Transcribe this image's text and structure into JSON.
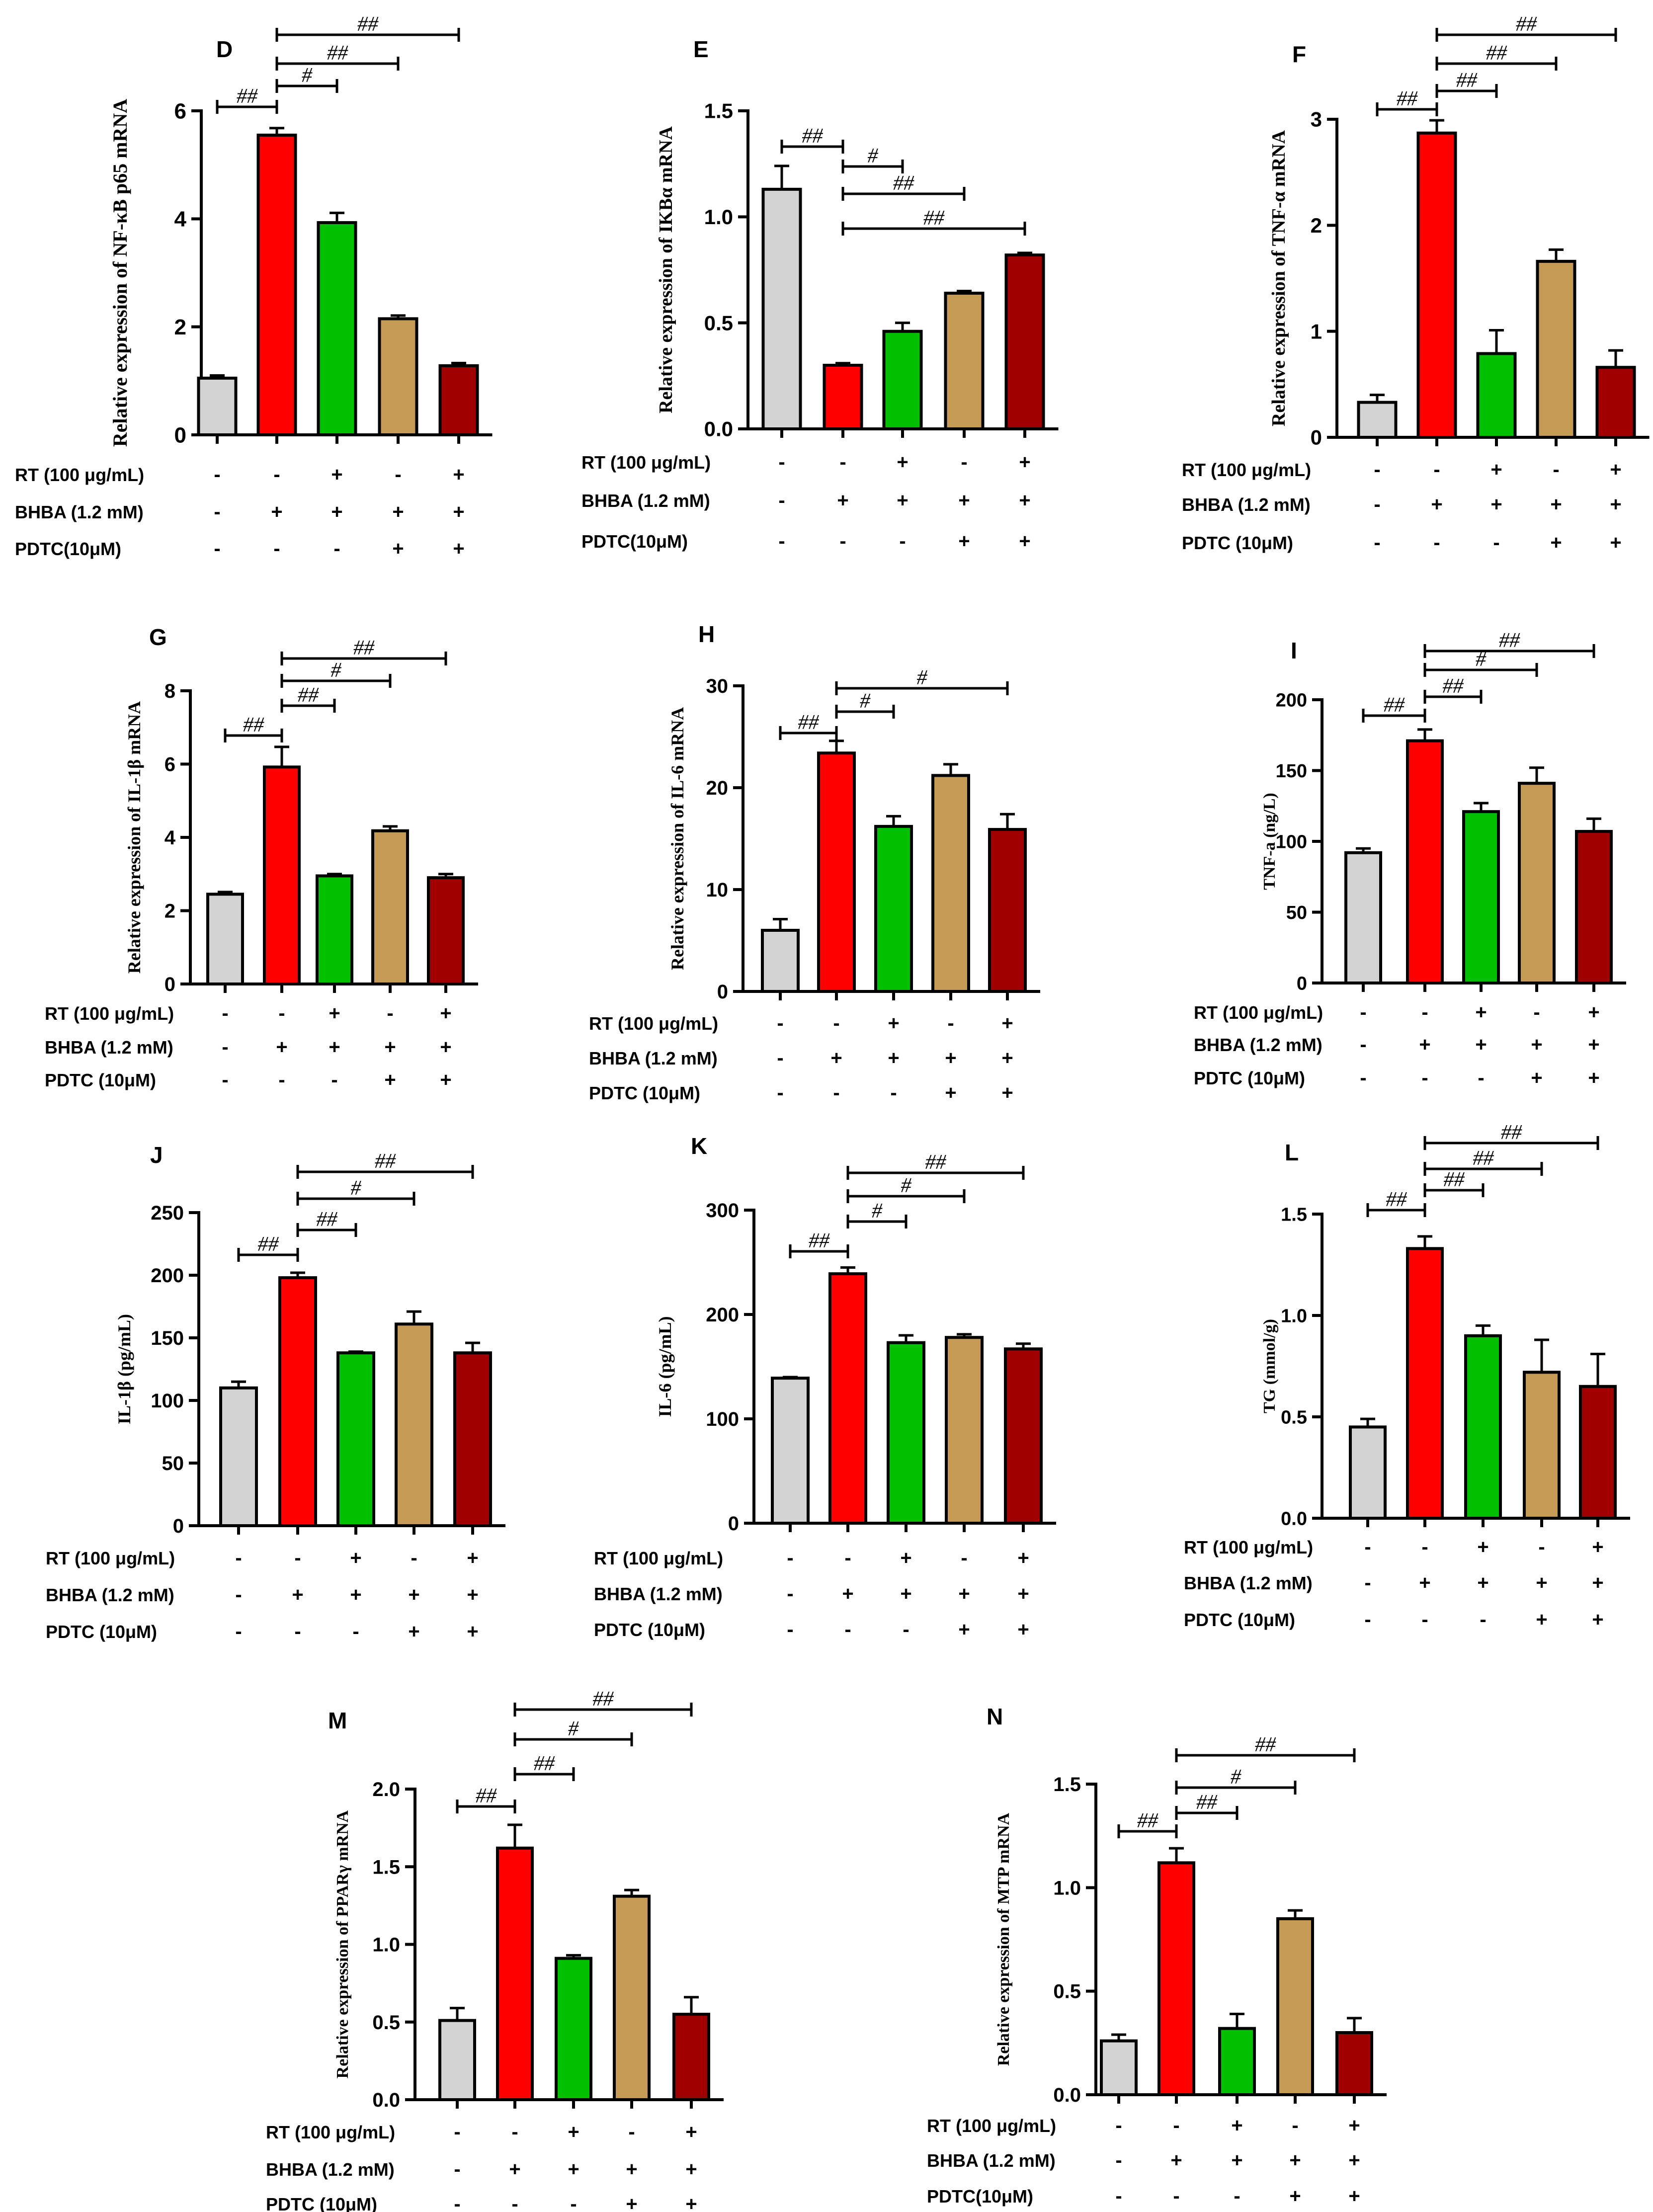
{
  "colors": {
    "ctrl": "#d3d3d3",
    "bhba": "#ff0000",
    "rt": "#00c000",
    "pdtc": "#c49a55",
    "rtpdtc": "#a00000",
    "axis": "#000000"
  },
  "conditions": {
    "rt": [
      "-",
      "-",
      "+",
      "-",
      "+"
    ],
    "bhba": [
      "-",
      "+",
      "+",
      "+",
      "+"
    ],
    "pdtc": [
      "-",
      "-",
      "-",
      "+",
      "+"
    ]
  },
  "chart_data": [
    {
      "type": "bar",
      "panel": "D",
      "ylabel": "Relative expression of NF-κB p65 mRNA",
      "ylim": [
        0,
        6
      ],
      "yticks": [
        0,
        2,
        4,
        6
      ],
      "values": [
        1.05,
        5.55,
        3.93,
        2.15,
        1.28
      ],
      "errors": [
        0.05,
        0.13,
        0.18,
        0.06,
        0.05
      ],
      "cond_labels": [
        "RT (100 μg/mL)",
        "BHBA (1.2 mM)",
        "PDTC(10μM)"
      ],
      "sig": [
        {
          "from": 0,
          "to": 1,
          "text": "##"
        },
        {
          "from": 1,
          "to": 2,
          "text": "#"
        },
        {
          "from": 1,
          "to": 3,
          "text": "##"
        },
        {
          "from": 1,
          "to": 4,
          "text": "##"
        }
      ]
    },
    {
      "type": "bar",
      "panel": "E",
      "ylabel": "Relative expression of IKBα mRNA",
      "ylim": [
        0,
        1.5
      ],
      "yticks": [
        0.0,
        0.5,
        1.0,
        1.5
      ],
      "tick_decimals": 1,
      "values": [
        1.13,
        0.3,
        0.46,
        0.64,
        0.82
      ],
      "errors": [
        0.11,
        0.01,
        0.04,
        0.01,
        0.01
      ],
      "cond_labels": [
        "RT (100 μg/mL)",
        "BHBA (1.2 mM)",
        "PDTC(10μM)"
      ],
      "sig": [
        {
          "from": 0,
          "to": 1,
          "text": "##"
        },
        {
          "from": 1,
          "to": 2,
          "text": "#"
        },
        {
          "from": 1,
          "to": 3,
          "text": "##"
        },
        {
          "from": 1,
          "to": 4,
          "text": "##"
        }
      ]
    },
    {
      "type": "bar",
      "panel": "F",
      "ylabel": "Relative expression of TNF-α mRNA",
      "ylim": [
        0,
        3
      ],
      "yticks": [
        0,
        1,
        2,
        3
      ],
      "values": [
        0.33,
        2.87,
        0.79,
        1.66,
        0.66
      ],
      "errors": [
        0.07,
        0.12,
        0.22,
        0.11,
        0.16
      ],
      "cond_labels": [
        "RT (100 μg/mL)",
        "BHBA (1.2 mM)",
        "PDTC (10μM)"
      ],
      "sig": [
        {
          "from": 0,
          "to": 1,
          "text": "##"
        },
        {
          "from": 1,
          "to": 2,
          "text": "##"
        },
        {
          "from": 1,
          "to": 3,
          "text": "##"
        },
        {
          "from": 1,
          "to": 4,
          "text": "##"
        }
      ]
    },
    {
      "type": "bar",
      "panel": "G",
      "ylabel": "Relative expression of IL-1β mRNA",
      "ylim": [
        0,
        8
      ],
      "yticks": [
        0,
        2,
        4,
        6,
        8
      ],
      "values": [
        2.45,
        5.92,
        2.95,
        4.18,
        2.9
      ],
      "errors": [
        0.06,
        0.55,
        0.05,
        0.12,
        0.1
      ],
      "cond_labels": [
        "RT (100 μg/mL)",
        "BHBA (1.2 mM)",
        "PDTC (10μM)"
      ],
      "sig": [
        {
          "from": 0,
          "to": 1,
          "text": "##"
        },
        {
          "from": 1,
          "to": 2,
          "text": "##"
        },
        {
          "from": 1,
          "to": 3,
          "text": "#"
        },
        {
          "from": 1,
          "to": 4,
          "text": "##"
        }
      ]
    },
    {
      "type": "bar",
      "panel": "H",
      "ylabel": "Relative expression of IL-6 mRNA",
      "ylim": [
        0,
        30
      ],
      "yticks": [
        0,
        10,
        20,
        30
      ],
      "values": [
        6.0,
        23.4,
        16.2,
        21.2,
        15.9
      ],
      "errors": [
        1.1,
        1.2,
        1.0,
        1.1,
        1.5
      ],
      "cond_labels": [
        "RT (100 μg/mL)",
        "BHBA (1.2 mM)",
        "PDTC (10μM)"
      ],
      "sig": [
        {
          "from": 0,
          "to": 1,
          "text": "##"
        },
        {
          "from": 1,
          "to": 2,
          "text": "#"
        },
        {
          "from": 1,
          "to": 4,
          "text": "#"
        }
      ]
    },
    {
      "type": "bar",
      "panel": "I",
      "ylabel": "TNF-a (ng/L)",
      "ylim": [
        0,
        200
      ],
      "yticks": [
        0,
        50,
        100,
        150,
        200
      ],
      "values": [
        92,
        171,
        121,
        141,
        107
      ],
      "errors": [
        3,
        8,
        6,
        11,
        9
      ],
      "cond_labels": [
        "RT (100 μg/mL)",
        "BHBA (1.2 mM)",
        "PDTC (10μM)"
      ],
      "sig": [
        {
          "from": 0,
          "to": 1,
          "text": "##"
        },
        {
          "from": 1,
          "to": 2,
          "text": "##"
        },
        {
          "from": 1,
          "to": 3,
          "text": "#"
        },
        {
          "from": 1,
          "to": 4,
          "text": "##"
        }
      ]
    },
    {
      "type": "bar",
      "panel": "J",
      "ylabel": "IL-1β (pg/mL)",
      "ylim": [
        0,
        250
      ],
      "yticks": [
        0,
        50,
        100,
        150,
        200,
        250
      ],
      "values": [
        110,
        198,
        138,
        161,
        138
      ],
      "errors": [
        5,
        4,
        1,
        10,
        8
      ],
      "cond_labels": [
        "RT (100 μg/mL)",
        "BHBA (1.2 mM)",
        "PDTC (10μM)"
      ],
      "sig": [
        {
          "from": 0,
          "to": 1,
          "text": "##"
        },
        {
          "from": 1,
          "to": 2,
          "text": "##"
        },
        {
          "from": 1,
          "to": 3,
          "text": "#"
        },
        {
          "from": 1,
          "to": 4,
          "text": "##"
        }
      ]
    },
    {
      "type": "bar",
      "panel": "K",
      "ylabel": "IL-6 (pg/mL)",
      "ylim": [
        0,
        300
      ],
      "yticks": [
        0,
        100,
        200,
        300
      ],
      "values": [
        139,
        239,
        173,
        178,
        167
      ],
      "errors": [
        1,
        6,
        7,
        3,
        5
      ],
      "cond_labels": [
        "RT (100 μg/mL)",
        "BHBA (1.2 mM)",
        "PDTC (10μM)"
      ],
      "sig": [
        {
          "from": 0,
          "to": 1,
          "text": "##"
        },
        {
          "from": 1,
          "to": 2,
          "text": "#"
        },
        {
          "from": 1,
          "to": 3,
          "text": "#"
        },
        {
          "from": 1,
          "to": 4,
          "text": "##"
        }
      ]
    },
    {
      "type": "bar",
      "panel": "L",
      "ylabel": "TG (mmol/g)",
      "ylim": [
        0,
        1.5
      ],
      "yticks": [
        0.0,
        0.5,
        1.0,
        1.5
      ],
      "tick_decimals": 1,
      "values": [
        0.45,
        1.33,
        0.9,
        0.72,
        0.65
      ],
      "errors": [
        0.04,
        0.06,
        0.05,
        0.16,
        0.16
      ],
      "cond_labels": [
        "RT (100 μg/mL)",
        "BHBA (1.2 mM)",
        "PDTC (10μM)"
      ],
      "sig": [
        {
          "from": 0,
          "to": 1,
          "text": "##"
        },
        {
          "from": 1,
          "to": 2,
          "text": "##"
        },
        {
          "from": 1,
          "to": 3,
          "text": "##"
        },
        {
          "from": 1,
          "to": 4,
          "text": "##"
        }
      ]
    },
    {
      "type": "bar",
      "panel": "M",
      "ylabel": "Relative expression of PPARγ mRNA",
      "ylim": [
        0,
        2.0
      ],
      "yticks": [
        0.0,
        0.5,
        1.0,
        1.5,
        2.0
      ],
      "tick_decimals": 1,
      "values": [
        0.51,
        1.62,
        0.91,
        1.31,
        0.55
      ],
      "errors": [
        0.08,
        0.15,
        0.02,
        0.04,
        0.11
      ],
      "cond_labels": [
        "RT (100 μg/mL)",
        "BHBA (1.2 mM)",
        "PDTC (10μM)"
      ],
      "sig": [
        {
          "from": 0,
          "to": 1,
          "text": "##"
        },
        {
          "from": 1,
          "to": 2,
          "text": "##"
        },
        {
          "from": 1,
          "to": 3,
          "text": "#"
        },
        {
          "from": 1,
          "to": 4,
          "text": "##"
        }
      ]
    },
    {
      "type": "bar",
      "panel": "N",
      "ylabel": "Relative expression of MTP mRNA",
      "ylim": [
        0,
        1.5
      ],
      "yticks": [
        0.0,
        0.5,
        1.0,
        1.5
      ],
      "tick_decimals": 1,
      "values": [
        0.26,
        1.12,
        0.32,
        0.85,
        0.3
      ],
      "errors": [
        0.03,
        0.07,
        0.07,
        0.04,
        0.07
      ],
      "cond_labels": [
        "RT (100 μg/mL)",
        "BHBA (1.2 mM)",
        "PDTC(10μM)"
      ],
      "sig": [
        {
          "from": 0,
          "to": 1,
          "text": "##"
        },
        {
          "from": 1,
          "to": 2,
          "text": "##"
        },
        {
          "from": 1,
          "to": 3,
          "text": "#"
        },
        {
          "from": 1,
          "to": 4,
          "text": "##"
        }
      ]
    }
  ]
}
